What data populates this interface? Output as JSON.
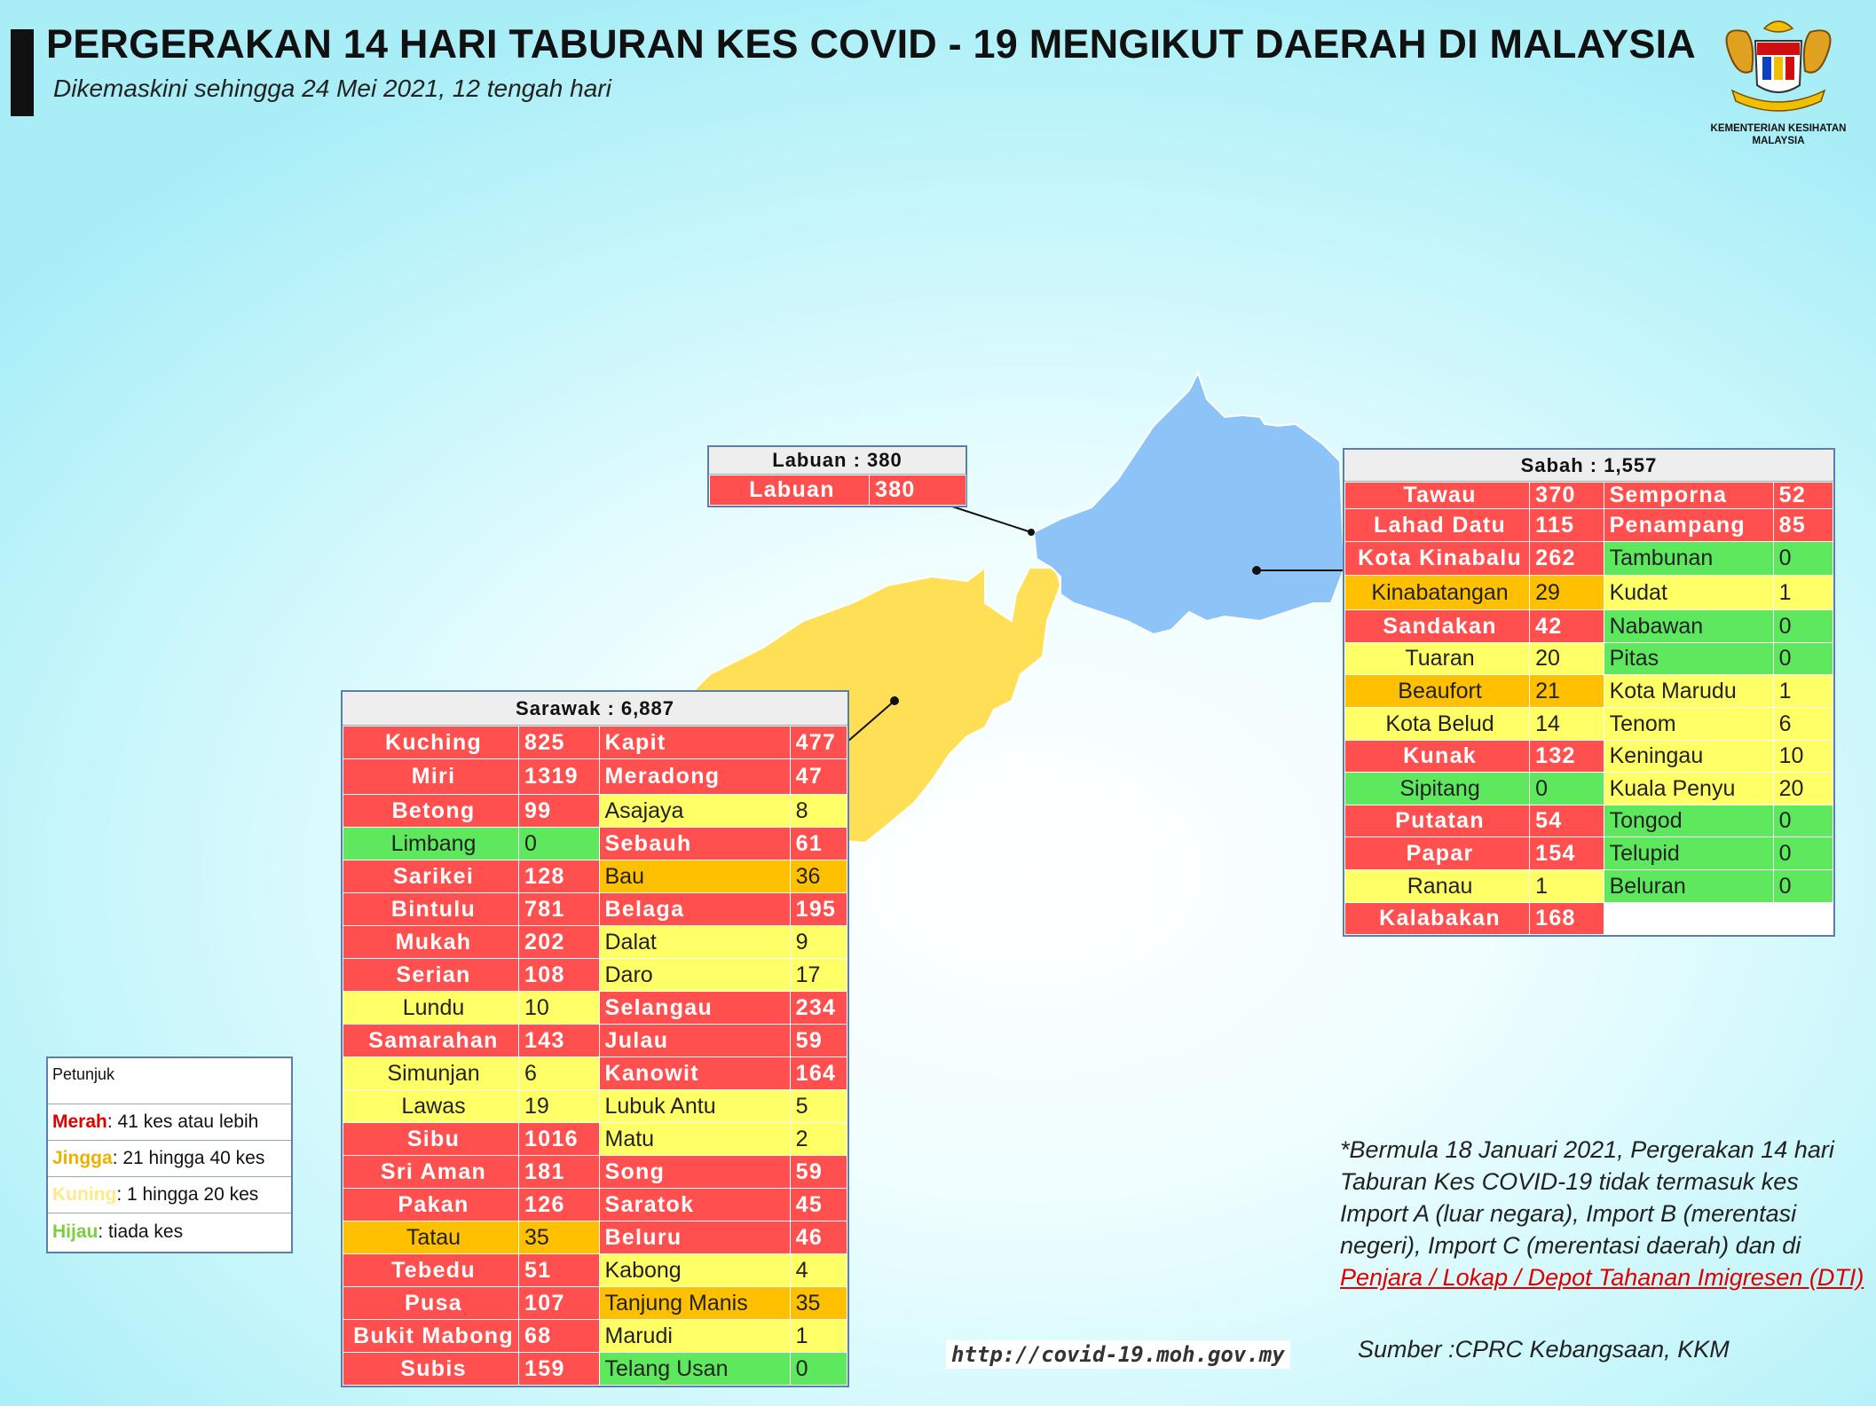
{
  "header": {
    "title": "PERGERAKAN 14 HARI TABURAN KES COVID - 19 MENGIKUT DAERAH DI MALAYSIA",
    "subtitle": "Dikemaskini sehingga 24 Mei 2021, 12 tengah hari"
  },
  "logo": {
    "line1": "KEMENTERIAN KESIHATAN",
    "line2": "MALAYSIA",
    "motto": "BERSEKUTU BERTAMBAH MUTU"
  },
  "colors": {
    "merah": "#ff4f4f",
    "jingga": "#ffc000",
    "kuning": "#ffff66",
    "hijau": "#5ee85e",
    "sabah_map": "#8cc4f8",
    "sarawak_map": "#ffdf55"
  },
  "labuan": {
    "heading": "Labuan : 380",
    "rows": [
      {
        "name": "Labuan",
        "value": "380",
        "level": "red"
      }
    ]
  },
  "sabah": {
    "heading": "Sabah : 1,557",
    "rows": [
      [
        {
          "name": "Tawau",
          "value": "370",
          "level": "red"
        },
        {
          "name": "Semporna",
          "value": "52",
          "level": "red"
        }
      ],
      [
        {
          "name": "Lahad Datu",
          "value": "115",
          "level": "red"
        },
        {
          "name": "Penampang",
          "value": "85",
          "level": "red"
        }
      ],
      [
        {
          "name": "Kota Kinabalu",
          "value": "262",
          "level": "red"
        },
        {
          "name": "Tambunan",
          "value": "0",
          "level": "green"
        }
      ],
      [
        {
          "name": "Kinabatangan",
          "value": "29",
          "level": "orange"
        },
        {
          "name": "Kudat",
          "value": "1",
          "level": "yellow"
        }
      ],
      [
        {
          "name": "Sandakan",
          "value": "42",
          "level": "red"
        },
        {
          "name": "Nabawan",
          "value": "0",
          "level": "green"
        }
      ],
      [
        {
          "name": "Tuaran",
          "value": "20",
          "level": "yellow"
        },
        {
          "name": "Pitas",
          "value": "0",
          "level": "green"
        }
      ],
      [
        {
          "name": "Beaufort",
          "value": "21",
          "level": "orange"
        },
        {
          "name": "Kota Marudu",
          "value": "1",
          "level": "yellow"
        }
      ],
      [
        {
          "name": "Kota Belud",
          "value": "14",
          "level": "yellow"
        },
        {
          "name": "Tenom",
          "value": "6",
          "level": "yellow"
        }
      ],
      [
        {
          "name": "Kunak",
          "value": "132",
          "level": "red"
        },
        {
          "name": "Keningau",
          "value": "10",
          "level": "yellow"
        }
      ],
      [
        {
          "name": "Sipitang",
          "value": "0",
          "level": "green"
        },
        {
          "name": "Kuala Penyu",
          "value": "20",
          "level": "yellow"
        }
      ],
      [
        {
          "name": "Putatan",
          "value": "54",
          "level": "red"
        },
        {
          "name": "Tongod",
          "value": "0",
          "level": "green"
        }
      ],
      [
        {
          "name": "Papar",
          "value": "154",
          "level": "red"
        },
        {
          "name": "Telupid",
          "value": "0",
          "level": "green"
        }
      ],
      [
        {
          "name": "Ranau",
          "value": "1",
          "level": "yellow"
        },
        {
          "name": "Beluran",
          "value": "0",
          "level": "green"
        }
      ],
      [
        {
          "name": "Kalabakan",
          "value": "168",
          "level": "red"
        },
        {
          "name": "",
          "value": "",
          "level": "blank"
        }
      ]
    ]
  },
  "sarawak": {
    "heading": "Sarawak : 6,887",
    "rows": [
      [
        {
          "name": "Kuching",
          "value": "825",
          "level": "red"
        },
        {
          "name": "Kapit",
          "value": "477",
          "level": "red"
        }
      ],
      [
        {
          "name": "Miri",
          "value": "1319",
          "level": "red"
        },
        {
          "name": "Meradong",
          "value": "47",
          "level": "red"
        }
      ],
      [
        {
          "name": "Betong",
          "value": "99",
          "level": "red"
        },
        {
          "name": "Asajaya",
          "value": "8",
          "level": "yellow"
        }
      ],
      [
        {
          "name": "Limbang",
          "value": "0",
          "level": "green"
        },
        {
          "name": "Sebauh",
          "value": "61",
          "level": "red"
        }
      ],
      [
        {
          "name": "Sarikei",
          "value": "128",
          "level": "red"
        },
        {
          "name": "Bau",
          "value": "36",
          "level": "orange"
        }
      ],
      [
        {
          "name": "Bintulu",
          "value": "781",
          "level": "red"
        },
        {
          "name": "Belaga",
          "value": "195",
          "level": "red"
        }
      ],
      [
        {
          "name": "Mukah",
          "value": "202",
          "level": "red"
        },
        {
          "name": "Dalat",
          "value": "9",
          "level": "yellow"
        }
      ],
      [
        {
          "name": "Serian",
          "value": "108",
          "level": "red"
        },
        {
          "name": "Daro",
          "value": "17",
          "level": "yellow"
        }
      ],
      [
        {
          "name": "Lundu",
          "value": "10",
          "level": "yellow"
        },
        {
          "name": "Selangau",
          "value": "234",
          "level": "red"
        }
      ],
      [
        {
          "name": "Samarahan",
          "value": "143",
          "level": "red"
        },
        {
          "name": "Julau",
          "value": "59",
          "level": "red"
        }
      ],
      [
        {
          "name": "Simunjan",
          "value": "6",
          "level": "yellow"
        },
        {
          "name": "Kanowit",
          "value": "164",
          "level": "red"
        }
      ],
      [
        {
          "name": "Lawas",
          "value": "19",
          "level": "yellow"
        },
        {
          "name": "Lubuk Antu",
          "value": "5",
          "level": "yellow"
        }
      ],
      [
        {
          "name": "Sibu",
          "value": "1016",
          "level": "red"
        },
        {
          "name": "Matu",
          "value": "2",
          "level": "yellow"
        }
      ],
      [
        {
          "name": "Sri Aman",
          "value": "181",
          "level": "red"
        },
        {
          "name": "Song",
          "value": "59",
          "level": "red"
        }
      ],
      [
        {
          "name": "Pakan",
          "value": "126",
          "level": "red"
        },
        {
          "name": "Saratok",
          "value": "45",
          "level": "red"
        }
      ],
      [
        {
          "name": "Tatau",
          "value": "35",
          "level": "orange"
        },
        {
          "name": "Beluru",
          "value": "46",
          "level": "red"
        }
      ],
      [
        {
          "name": "Tebedu",
          "value": "51",
          "level": "red"
        },
        {
          "name": "Kabong",
          "value": "4",
          "level": "yellow"
        }
      ],
      [
        {
          "name": "Pusa",
          "value": "107",
          "level": "red"
        },
        {
          "name": "Tanjung Manis",
          "value": "35",
          "level": "orange"
        }
      ],
      [
        {
          "name": "Bukit Mabong",
          "value": "68",
          "level": "red"
        },
        {
          "name": "Marudi",
          "value": "1",
          "level": "yellow"
        }
      ],
      [
        {
          "name": "Subis",
          "value": "159",
          "level": "red"
        },
        {
          "name": "Telang Usan",
          "value": "0",
          "level": "green"
        }
      ]
    ]
  },
  "legend": {
    "title": "Petunjuk",
    "items": [
      {
        "label": "Merah",
        "text": " : 41 kes atau lebih",
        "color": "#e00000"
      },
      {
        "label": "Jingga",
        "text": " : 21 hingga 40 kes",
        "color": "#f0b000"
      },
      {
        "label": "Kuning",
        "text": " : 1 hingga 20 kes",
        "color": "#ffe98a"
      },
      {
        "label": "Hijau",
        "text": " : tiada kes",
        "color": "#7ccf3c"
      }
    ]
  },
  "note": {
    "text": "*Bermula 18 Januari 2021, Pergerakan 14 hari Taburan Kes COVID-19 tidak termasuk kes Import A (luar negara), Import B (merentasi negeri), Import C (merentasi daerah) dan di ",
    "link": "Penjara / Lokap / Depot Tahanan Imigresen (DTI)"
  },
  "source": "Sumber :CPRC Kebangsaan,  KKM",
  "url": "http://covid-19.moh.gov.my"
}
